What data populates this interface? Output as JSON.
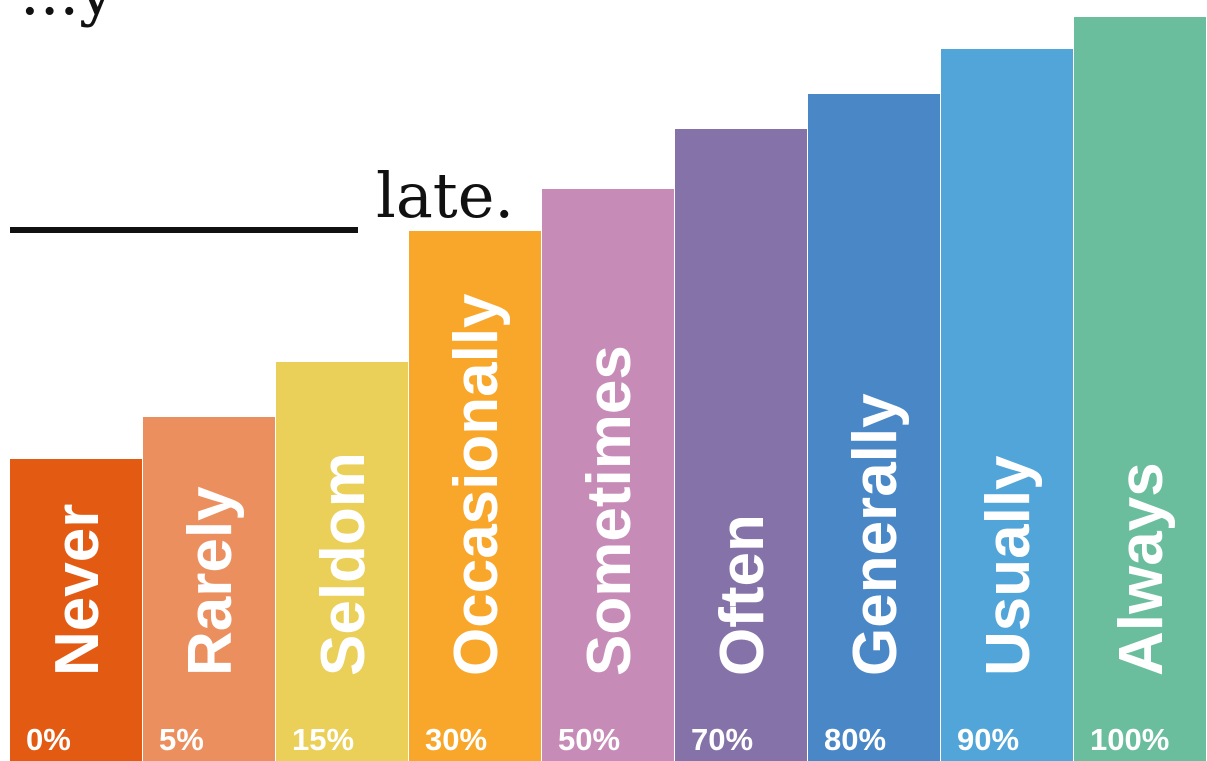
{
  "sentence": {
    "top_fragment": "...y",
    "ending": "late."
  },
  "chart_data": {
    "type": "bar",
    "title": "",
    "xlabel": "",
    "ylabel": "",
    "categories": [
      "Never",
      "Rarely",
      "Seldom",
      "Occasionally",
      "Sometimes",
      "Often",
      "Generally",
      "Usually",
      "Always"
    ],
    "values": [
      0,
      5,
      15,
      30,
      50,
      70,
      80,
      90,
      100
    ],
    "value_labels": [
      "0%",
      "5%",
      "15%",
      "30%",
      "50%",
      "70%",
      "80%",
      "90%",
      "100%"
    ],
    "colors": [
      "#E35A12",
      "#EB8F5F",
      "#EACF58",
      "#F8A72A",
      "#C78BB8",
      "#8572A8",
      "#4A87C7",
      "#52A5D8",
      "#6ABE9E"
    ],
    "grid": false,
    "legend": "none"
  }
}
